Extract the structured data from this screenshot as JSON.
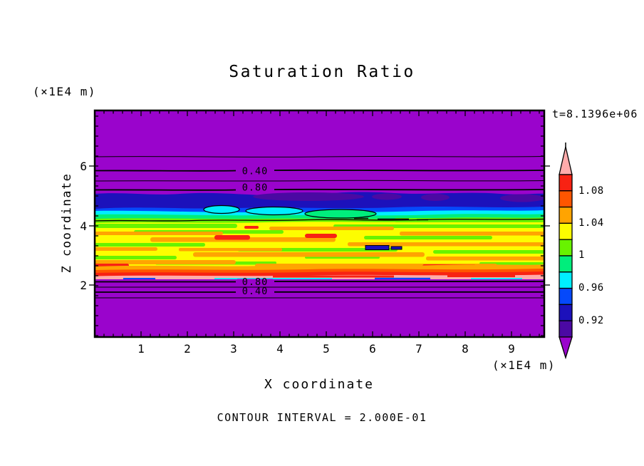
{
  "title": "Saturation Ratio",
  "time_label": "t=8.1396e+06",
  "contour_note": "CONTOUR INTERVAL = 2.000E-01",
  "palette": {
    "purple": "#9a04cc",
    "indigo": "#4b09a3",
    "navy": "#1c11bb",
    "blue": "#0549fb",
    "cyan": "#00eeff",
    "spring_green": "#00ee7c",
    "chartreuse": "#68f300",
    "yellow": "#fdfd00",
    "orange": "#ffa401",
    "orange_red": "#ff5500",
    "red": "#f82213",
    "pink": "#ffabab",
    "line": "#000000"
  },
  "axes": {
    "x": {
      "label": "X coordinate",
      "unit_label": "(×1E4 m)",
      "tick_labels": [
        "1",
        "2",
        "3",
        "4",
        "5",
        "6",
        "7",
        "8",
        "9"
      ]
    },
    "y": {
      "label": "Z coordinate",
      "unit_label": "(×1E4 m)",
      "tick_labels": [
        "6",
        "4",
        "2"
      ]
    }
  },
  "colorbar": {
    "over_color": "#ffabab",
    "under_color": "#9a04cc",
    "labels": [
      "1.08",
      "1.04",
      "1",
      "0.96",
      "0.92"
    ],
    "segments": [
      {
        "range": [
          1.08,
          1.1
        ],
        "color": "#f82213"
      },
      {
        "range": [
          1.06,
          1.08
        ],
        "color": "#ff5500"
      },
      {
        "range": [
          1.04,
          1.06
        ],
        "color": "#ffa401"
      },
      {
        "range": [
          1.02,
          1.04
        ],
        "color": "#fdfd00"
      },
      {
        "range": [
          1.0,
          1.02
        ],
        "color": "#68f300"
      },
      {
        "range": [
          0.98,
          1.0
        ],
        "color": "#00ee7c"
      },
      {
        "range": [
          0.96,
          0.98
        ],
        "color": "#00eeff"
      },
      {
        "range": [
          0.94,
          0.96
        ],
        "color": "#0549fb"
      },
      {
        "range": [
          0.92,
          0.94
        ],
        "color": "#1c11bb"
      },
      {
        "range": [
          0.9,
          0.92
        ],
        "color": "#4b09a3"
      }
    ]
  },
  "chart_data": {
    "type": "filled_contour",
    "title": "Saturation Ratio",
    "xlabel": "X coordinate (×1E4 m)",
    "ylabel": "Z coordinate (×1E4 m)",
    "x_range": [
      0,
      9.7
    ],
    "y_range": [
      0.25,
      7.9
    ],
    "x_ticks": [
      1,
      2,
      3,
      4,
      5,
      6,
      7,
      8,
      9
    ],
    "y_ticks": [
      2,
      4,
      6
    ],
    "time": "t=8.1396e+06",
    "contour_interval": 0.2,
    "colorbar_tick_values": [
      1.08,
      1.04,
      1,
      0.96,
      0.92
    ],
    "labeled_contours": [
      {
        "value": 0.4,
        "z": 5.9,
        "label": "0.40"
      },
      {
        "value": 0.8,
        "z": 5.2,
        "label": "0.80"
      },
      {
        "value": 0.8,
        "z": 2.1,
        "label": "0.80"
      },
      {
        "value": 0.4,
        "z": 1.8,
        "label": "0.40"
      }
    ],
    "unlabeled_contours": [
      {
        "value": 0.2,
        "z": 6.3
      },
      {
        "value": 0.6,
        "z": 5.5
      },
      {
        "value": 0.6,
        "z": 1.9
      },
      {
        "value": 0.2,
        "z": 1.6
      },
      {
        "value": 1.0,
        "z": 4.35
      }
    ],
    "vertical_profile": [
      {
        "z_range": [
          5.0,
          7.9
        ],
        "saturation": "< 0.90 (purple, subsaturated)"
      },
      {
        "z_range": [
          4.7,
          5.0
        ],
        "saturation": "0.90 - 0.96 (indigo / navy / blue band)"
      },
      {
        "z_range": [
          4.4,
          4.7
        ],
        "saturation": "0.96 - 1.00 (cyan / spring-green band)"
      },
      {
        "z_range": [
          2.5,
          4.4
        ],
        "saturation": "1.00 - 1.06 (streaky yellow / orange, local red > 1.06)"
      },
      {
        "z_range": [
          2.2,
          2.5
        ],
        "saturation": "1.06 - > 1.10 (red then pink band)"
      },
      {
        "z_range": [
          0.25,
          2.2
        ],
        "saturation": "< 0.90 (purple, subsaturated)"
      }
    ]
  }
}
